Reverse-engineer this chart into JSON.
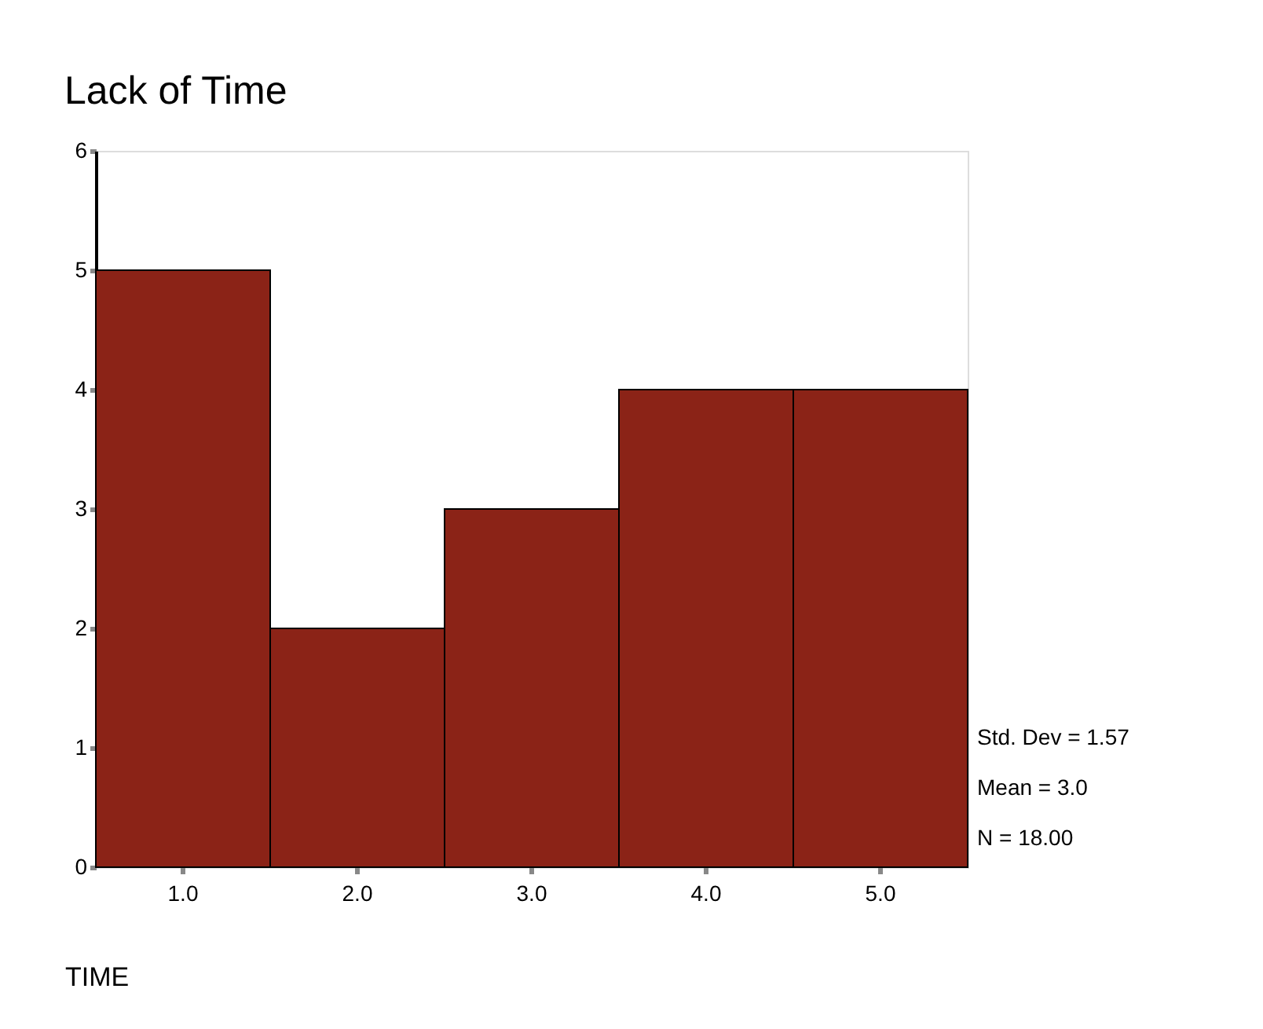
{
  "chart_data": {
    "type": "bar",
    "title": "Lack of Time",
    "xlabel": "TIME",
    "categories": [
      "1.0",
      "2.0",
      "3.0",
      "4.0",
      "5.0"
    ],
    "values": [
      5,
      2,
      3,
      4,
      4
    ],
    "color": "#8b2317",
    "ylim": [
      0,
      6
    ],
    "yticks": [
      0,
      1,
      2,
      3,
      4,
      5,
      6
    ],
    "grid": false,
    "annotations": [
      "Std. Dev = 1.57",
      "Mean = 3.0",
      "N = 18.00"
    ]
  }
}
